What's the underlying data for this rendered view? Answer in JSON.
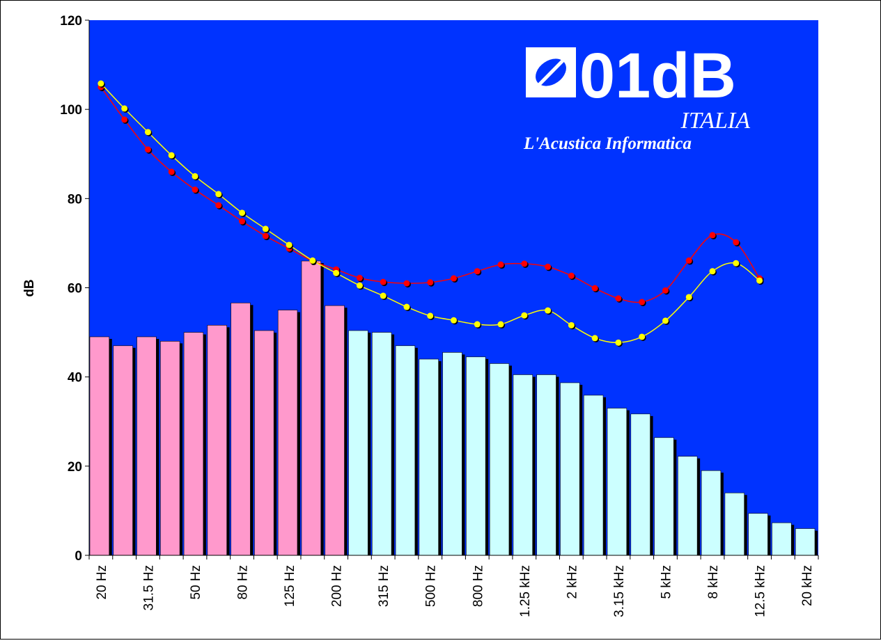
{
  "chart_data": {
    "type": "bar",
    "ylabel": "dB",
    "logo": {
      "brand": "01dB",
      "country": "ITALIA",
      "tagline": "L'Acustica Informatica"
    },
    "categories": [
      "20 Hz",
      null,
      "31.5 Hz",
      null,
      "50 Hz",
      null,
      "80 Hz",
      null,
      "125 Hz",
      null,
      "200 Hz",
      null,
      "315 Hz",
      null,
      "500 Hz",
      null,
      "800 Hz",
      null,
      "1.25 kHz",
      null,
      "2 kHz",
      null,
      "3.15 kHz",
      null,
      "5 kHz",
      null,
      "8 kHz",
      null,
      "12.5 kHz",
      null,
      "20 kHz"
    ],
    "ylim": [
      0,
      120
    ],
    "yticks": [
      0,
      20,
      40,
      60,
      80,
      100,
      120
    ],
    "background": "#0033ff",
    "series": [
      {
        "type": "bar",
        "color": "#ff99cc",
        "values": [
          49,
          47,
          49,
          48,
          50,
          51.6,
          56.6,
          50.4,
          55,
          66,
          56,
          null,
          null,
          null,
          null,
          null,
          null,
          null,
          null,
          null,
          null,
          null,
          null,
          null,
          null,
          null,
          null,
          null,
          null,
          null,
          null
        ]
      },
      {
        "type": "bar",
        "color": "#ccffff",
        "values": [
          null,
          null,
          null,
          null,
          null,
          null,
          null,
          null,
          null,
          null,
          null,
          50.4,
          50,
          47,
          44,
          45.5,
          44.5,
          43,
          40.5,
          40.5,
          38.7,
          35.9,
          33,
          31.7,
          26.4,
          22.2,
          19,
          14,
          9.4,
          7.3,
          6
        ]
      },
      {
        "type": "line",
        "color": "#ff0000",
        "values": [
          105,
          97.7,
          91,
          86,
          82,
          78.5,
          74.9,
          71.6,
          68.8,
          66,
          64.1,
          62.2,
          61.3,
          61,
          61.2,
          62.1,
          63.7,
          65.2,
          65.4,
          64.7,
          62.7,
          59.9,
          57.6,
          56.8,
          59.4,
          66.1,
          71.8,
          70.2,
          62.1,
          null,
          null
        ]
      },
      {
        "type": "line",
        "color": "#ffff00",
        "values": [
          105.8,
          100.2,
          94.9,
          89.7,
          85,
          81,
          76.8,
          73.2,
          69.6,
          66.1,
          63.3,
          60.5,
          58.2,
          55.7,
          53.7,
          52.7,
          51.8,
          51.8,
          53.8,
          54.9,
          51.6,
          48.7,
          47.7,
          49,
          52.6,
          57.9,
          63.7,
          65.5,
          61.6,
          null,
          null
        ]
      }
    ]
  }
}
